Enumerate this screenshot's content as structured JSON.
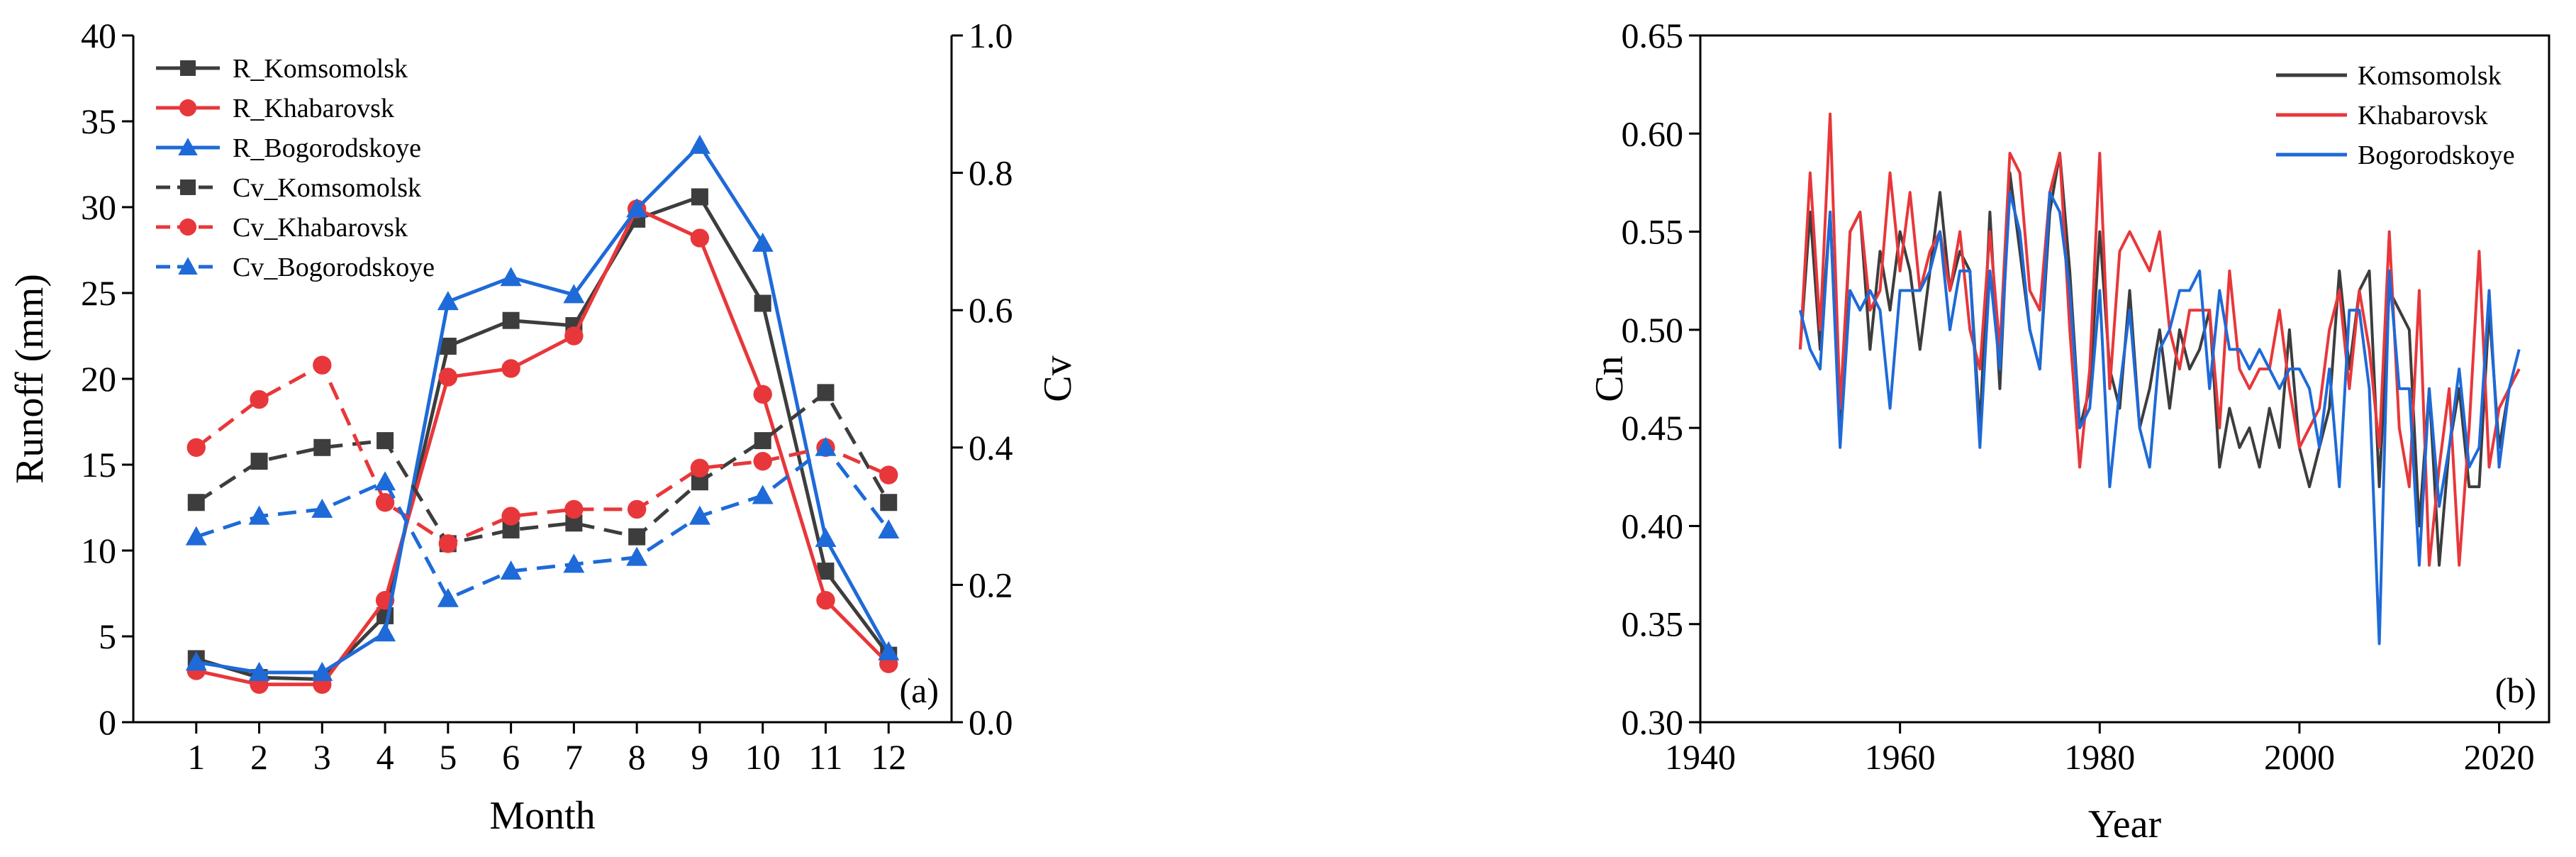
{
  "chart_data": [
    {
      "type": "line",
      "panel_label": "(a)",
      "xlabel": "Month",
      "ylabel": "Runoff (mm)",
      "y2label": "Cv",
      "xlim": [
        0,
        13
      ],
      "xticks": [
        1,
        2,
        3,
        4,
        5,
        6,
        7,
        8,
        9,
        10,
        11,
        12
      ],
      "ylim": [
        0,
        40
      ],
      "yticks": [
        0,
        5,
        10,
        15,
        20,
        25,
        30,
        35,
        40
      ],
      "y2lim": [
        0,
        1.0
      ],
      "y2ticks": [
        "0.0",
        "0.2",
        "0.4",
        "0.6",
        "0.8",
        "1.0"
      ],
      "legend_position": "top-left",
      "x": [
        1,
        2,
        3,
        4,
        5,
        6,
        7,
        8,
        9,
        10,
        11,
        12
      ],
      "series": [
        {
          "name": "R_Komsomolsk",
          "axis": "left",
          "color": "#3d3d3d",
          "marker": "square",
          "dash": false,
          "values": [
            3.7,
            2.6,
            2.5,
            6.2,
            21.9,
            23.4,
            23.1,
            29.3,
            30.6,
            24.4,
            8.8,
            3.9
          ]
        },
        {
          "name": "R_Khabarovsk",
          "axis": "left",
          "color": "#e8373a",
          "marker": "circle",
          "dash": false,
          "values": [
            3.0,
            2.2,
            2.2,
            7.1,
            20.1,
            20.6,
            22.5,
            29.9,
            28.2,
            19.1,
            7.1,
            3.4
          ]
        },
        {
          "name": "R_Bogorodskoye",
          "axis": "left",
          "color": "#1e6ad8",
          "marker": "triangle",
          "dash": false,
          "values": [
            3.5,
            2.9,
            2.9,
            5.2,
            24.5,
            25.9,
            24.9,
            29.9,
            33.6,
            27.9,
            10.7,
            4.1
          ]
        },
        {
          "name": "Cv_Komsomolsk",
          "axis": "right",
          "color": "#3d3d3d",
          "marker": "square",
          "dash": true,
          "values": [
            0.32,
            0.38,
            0.4,
            0.41,
            0.26,
            0.28,
            0.29,
            0.27,
            0.35,
            0.41,
            0.48,
            0.32
          ]
        },
        {
          "name": "Cv_Khabarovsk",
          "axis": "right",
          "color": "#e8373a",
          "marker": "circle",
          "dash": true,
          "values": [
            0.4,
            0.47,
            0.52,
            0.32,
            0.26,
            0.3,
            0.31,
            0.31,
            0.37,
            0.38,
            0.4,
            0.36
          ]
        },
        {
          "name": "Cv_Bogorodskoye",
          "axis": "right",
          "color": "#1e6ad8",
          "marker": "triangle",
          "dash": true,
          "values": [
            0.27,
            0.3,
            0.31,
            0.35,
            0.18,
            0.22,
            0.23,
            0.24,
            0.3,
            0.33,
            0.4,
            0.28
          ]
        }
      ]
    },
    {
      "type": "line",
      "panel_label": "(b)",
      "xlabel": "Year",
      "ylabel": "Cn",
      "xlim": [
        1940,
        2025
      ],
      "xticks": [
        1940,
        1960,
        1980,
        2000,
        2020
      ],
      "ylim": [
        0.3,
        0.65
      ],
      "yticks": [
        "0.30",
        "0.35",
        "0.40",
        "0.45",
        "0.50",
        "0.55",
        "0.60",
        "0.65"
      ],
      "legend_position": "top-right",
      "x": [
        1950,
        1951,
        1952,
        1953,
        1954,
        1955,
        1956,
        1957,
        1958,
        1959,
        1960,
        1961,
        1962,
        1963,
        1964,
        1965,
        1966,
        1967,
        1968,
        1969,
        1970,
        1971,
        1972,
        1973,
        1974,
        1975,
        1976,
        1977,
        1978,
        1979,
        1980,
        1981,
        1982,
        1983,
        1984,
        1985,
        1986,
        1987,
        1988,
        1989,
        1990,
        1991,
        1992,
        1993,
        1994,
        1995,
        1996,
        1997,
        1998,
        1999,
        2000,
        2001,
        2002,
        2003,
        2004,
        2005,
        2006,
        2007,
        2008,
        2009,
        2010,
        2011,
        2012,
        2013,
        2014,
        2015,
        2016,
        2017,
        2018,
        2019,
        2020,
        2021,
        2022
      ],
      "series": [
        {
          "name": "Komsomolsk",
          "color": "#3d3d3d",
          "values": [
            0.49,
            0.56,
            0.49,
            0.56,
            0.45,
            0.55,
            0.56,
            0.49,
            0.54,
            0.51,
            0.55,
            0.53,
            0.49,
            0.53,
            0.57,
            0.52,
            0.54,
            0.53,
            0.45,
            0.56,
            0.47,
            0.58,
            0.54,
            0.5,
            0.48,
            0.56,
            0.59,
            0.53,
            0.45,
            0.47,
            0.55,
            0.48,
            0.46,
            0.52,
            0.45,
            0.47,
            0.5,
            0.46,
            0.5,
            0.48,
            0.49,
            0.51,
            0.43,
            0.46,
            0.44,
            0.45,
            0.43,
            0.46,
            0.44,
            0.5,
            0.44,
            0.42,
            0.44,
            0.46,
            0.53,
            0.48,
            0.52,
            0.53,
            0.42,
            0.52,
            0.51,
            0.5,
            0.4,
            0.47,
            0.38,
            0.44,
            0.47,
            0.42,
            0.42,
            0.51,
            0.44,
            0.47,
            0.48
          ]
        },
        {
          "name": "Khabarovsk",
          "color": "#e8373a",
          "values": [
            0.49,
            0.58,
            0.5,
            0.61,
            0.46,
            0.55,
            0.56,
            0.51,
            0.52,
            0.58,
            0.53,
            0.57,
            0.52,
            0.54,
            0.55,
            0.52,
            0.55,
            0.5,
            0.48,
            0.55,
            0.49,
            0.59,
            0.58,
            0.52,
            0.51,
            0.57,
            0.59,
            0.5,
            0.43,
            0.48,
            0.59,
            0.47,
            0.54,
            0.55,
            0.54,
            0.53,
            0.55,
            0.5,
            0.48,
            0.51,
            0.51,
            0.51,
            0.45,
            0.53,
            0.48,
            0.47,
            0.48,
            0.48,
            0.51,
            0.47,
            0.44,
            0.45,
            0.46,
            0.5,
            0.52,
            0.47,
            0.52,
            0.49,
            0.44,
            0.55,
            0.45,
            0.42,
            0.52,
            0.38,
            0.43,
            0.47,
            0.38,
            0.45,
            0.54,
            0.43,
            0.46,
            0.47,
            0.48
          ]
        },
        {
          "name": "Bogorodskoye",
          "color": "#1e6ad8",
          "values": [
            0.51,
            0.49,
            0.48,
            0.56,
            0.44,
            0.52,
            0.51,
            0.52,
            0.51,
            0.46,
            0.52,
            0.52,
            0.52,
            0.53,
            0.55,
            0.5,
            0.53,
            0.53,
            0.44,
            0.53,
            0.48,
            0.57,
            0.55,
            0.5,
            0.48,
            0.57,
            0.56,
            0.52,
            0.45,
            0.46,
            0.52,
            0.42,
            0.47,
            0.51,
            0.45,
            0.43,
            0.49,
            0.5,
            0.52,
            0.52,
            0.53,
            0.47,
            0.52,
            0.49,
            0.49,
            0.48,
            0.49,
            0.48,
            0.47,
            0.48,
            0.48,
            0.47,
            0.44,
            0.48,
            0.42,
            0.51,
            0.51,
            0.47,
            0.34,
            0.53,
            0.47,
            0.47,
            0.38,
            0.47,
            0.41,
            0.44,
            0.48,
            0.43,
            0.44,
            0.52,
            0.43,
            0.47,
            0.49
          ]
        }
      ]
    }
  ]
}
